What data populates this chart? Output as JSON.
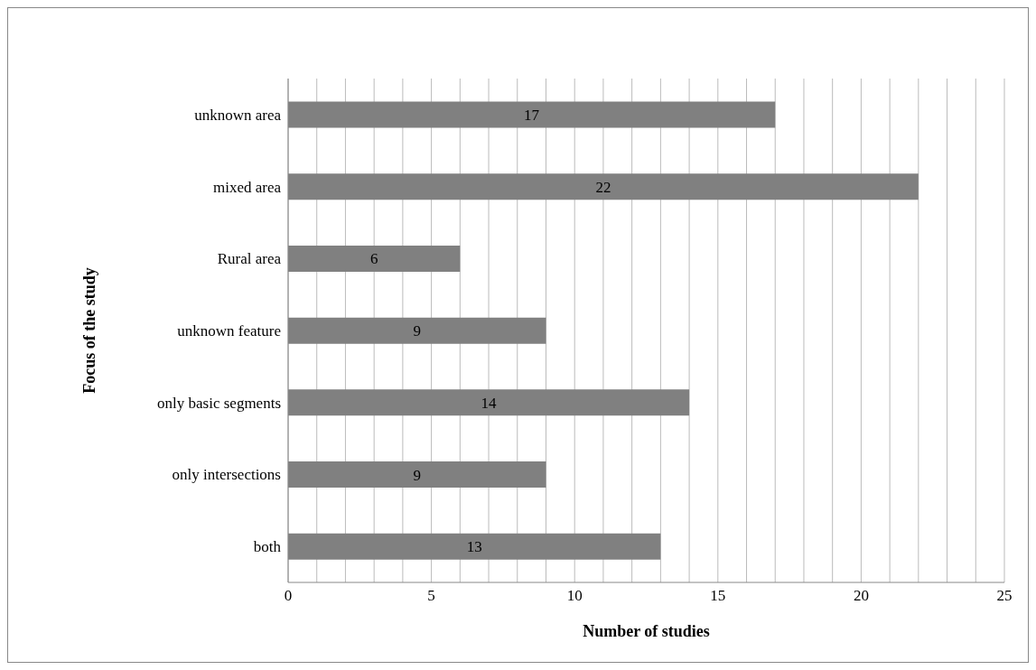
{
  "chart_data": {
    "type": "bar",
    "orientation": "horizontal",
    "xlabel": "Number of studies",
    "ylabel": "Focus of the study",
    "categories": [
      "unknown area",
      "mixed area",
      "Rural area",
      "unknown feature",
      "only basic segments",
      "only intersections",
      "both"
    ],
    "values": [
      17,
      22,
      6,
      9,
      14,
      9,
      13
    ],
    "color": "#808080",
    "data_labels": true,
    "xlim": [
      0,
      25
    ],
    "xticks": [
      0,
      {
        "value": 1,
        "label": null
      },
      {
        "value": 2,
        "label": null
      },
      {
        "value": 3,
        "label": null
      },
      {
        "value": 4,
        "label": null
      },
      5,
      {
        "value": 6,
        "label": null
      },
      {
        "value": 7,
        "label": null
      },
      {
        "value": 8,
        "label": null
      },
      {
        "value": 9,
        "label": null
      },
      10,
      {
        "value": 11,
        "label": null
      },
      {
        "value": 12,
        "label": null
      },
      {
        "value": 13,
        "label": null
      },
      {
        "value": 14,
        "label": null
      },
      15,
      {
        "value": 16,
        "label": null
      },
      {
        "value": 17,
        "label": null
      },
      {
        "value": 18,
        "label": null
      },
      {
        "value": 19,
        "label": null
      },
      20,
      {
        "value": 21,
        "label": null
      },
      {
        "value": 22,
        "label": null
      },
      {
        "value": 23,
        "label": null
      },
      {
        "value": 24,
        "label": null
      },
      25
    ],
    "grid": "x",
    "legend": false
  }
}
